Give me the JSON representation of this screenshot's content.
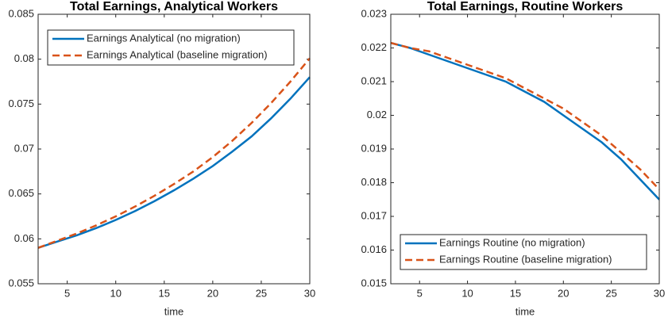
{
  "chart_data": [
    {
      "type": "line",
      "title": "Total Earnings, Analytical Workers",
      "x_label": "time",
      "x": [
        2,
        4,
        6,
        8,
        10,
        12,
        14,
        16,
        18,
        20,
        22,
        24,
        26,
        28,
        30
      ],
      "series": [
        {
          "name": "Earnings Analytical (no migration)",
          "color": "#0072BD",
          "style": "solid",
          "values": [
            0.059,
            0.0597,
            0.0604,
            0.0612,
            0.0621,
            0.0631,
            0.0642,
            0.0654,
            0.0667,
            0.0681,
            0.0697,
            0.0714,
            0.0734,
            0.0756,
            0.078
          ]
        },
        {
          "name": "Earnings Analytical (baseline migration)",
          "color": "#D95319",
          "style": "dashed",
          "values": [
            0.059,
            0.0598,
            0.0606,
            0.0615,
            0.0625,
            0.0636,
            0.0648,
            0.0661,
            0.0675,
            0.0691,
            0.0709,
            0.0729,
            0.0751,
            0.0775,
            0.0801
          ]
        }
      ],
      "xlim": [
        2,
        30
      ],
      "xticks": [
        5,
        10,
        15,
        20,
        25,
        30
      ],
      "ylim": [
        0.055,
        0.085
      ],
      "yticks": [
        0.055,
        0.06,
        0.065,
        0.07,
        0.075,
        0.08,
        0.085
      ],
      "legend": "northwest"
    },
    {
      "type": "line",
      "title": "Total Earnings, Routine Workers",
      "x_label": "time",
      "x": [
        2,
        4,
        6,
        8,
        10,
        12,
        14,
        16,
        18,
        20,
        22,
        24,
        26,
        28,
        30
      ],
      "series": [
        {
          "name": "Earnings Routine (no migration)",
          "color": "#0072BD",
          "style": "solid",
          "values": [
            0.02215,
            0.022,
            0.0218,
            0.0216,
            0.0214,
            0.0212,
            0.021,
            0.0207,
            0.0204,
            0.02,
            0.0196,
            0.0192,
            0.0187,
            0.0181,
            0.0175
          ]
        },
        {
          "name": "Earnings Routine (baseline migration)",
          "color": "#D95319",
          "style": "dashed",
          "values": [
            0.02215,
            0.022,
            0.0219,
            0.0217,
            0.0215,
            0.0213,
            0.0211,
            0.0208,
            0.0205,
            0.0202,
            0.0198,
            0.0194,
            0.0189,
            0.0184,
            0.0178
          ]
        }
      ],
      "xlim": [
        2,
        30
      ],
      "xticks": [
        5,
        10,
        15,
        20,
        25,
        30
      ],
      "ylim": [
        0.015,
        0.023
      ],
      "yticks": [
        0.015,
        0.016,
        0.017,
        0.018,
        0.019,
        0.02,
        0.021,
        0.022,
        0.023
      ],
      "legend": "southwest"
    }
  ]
}
